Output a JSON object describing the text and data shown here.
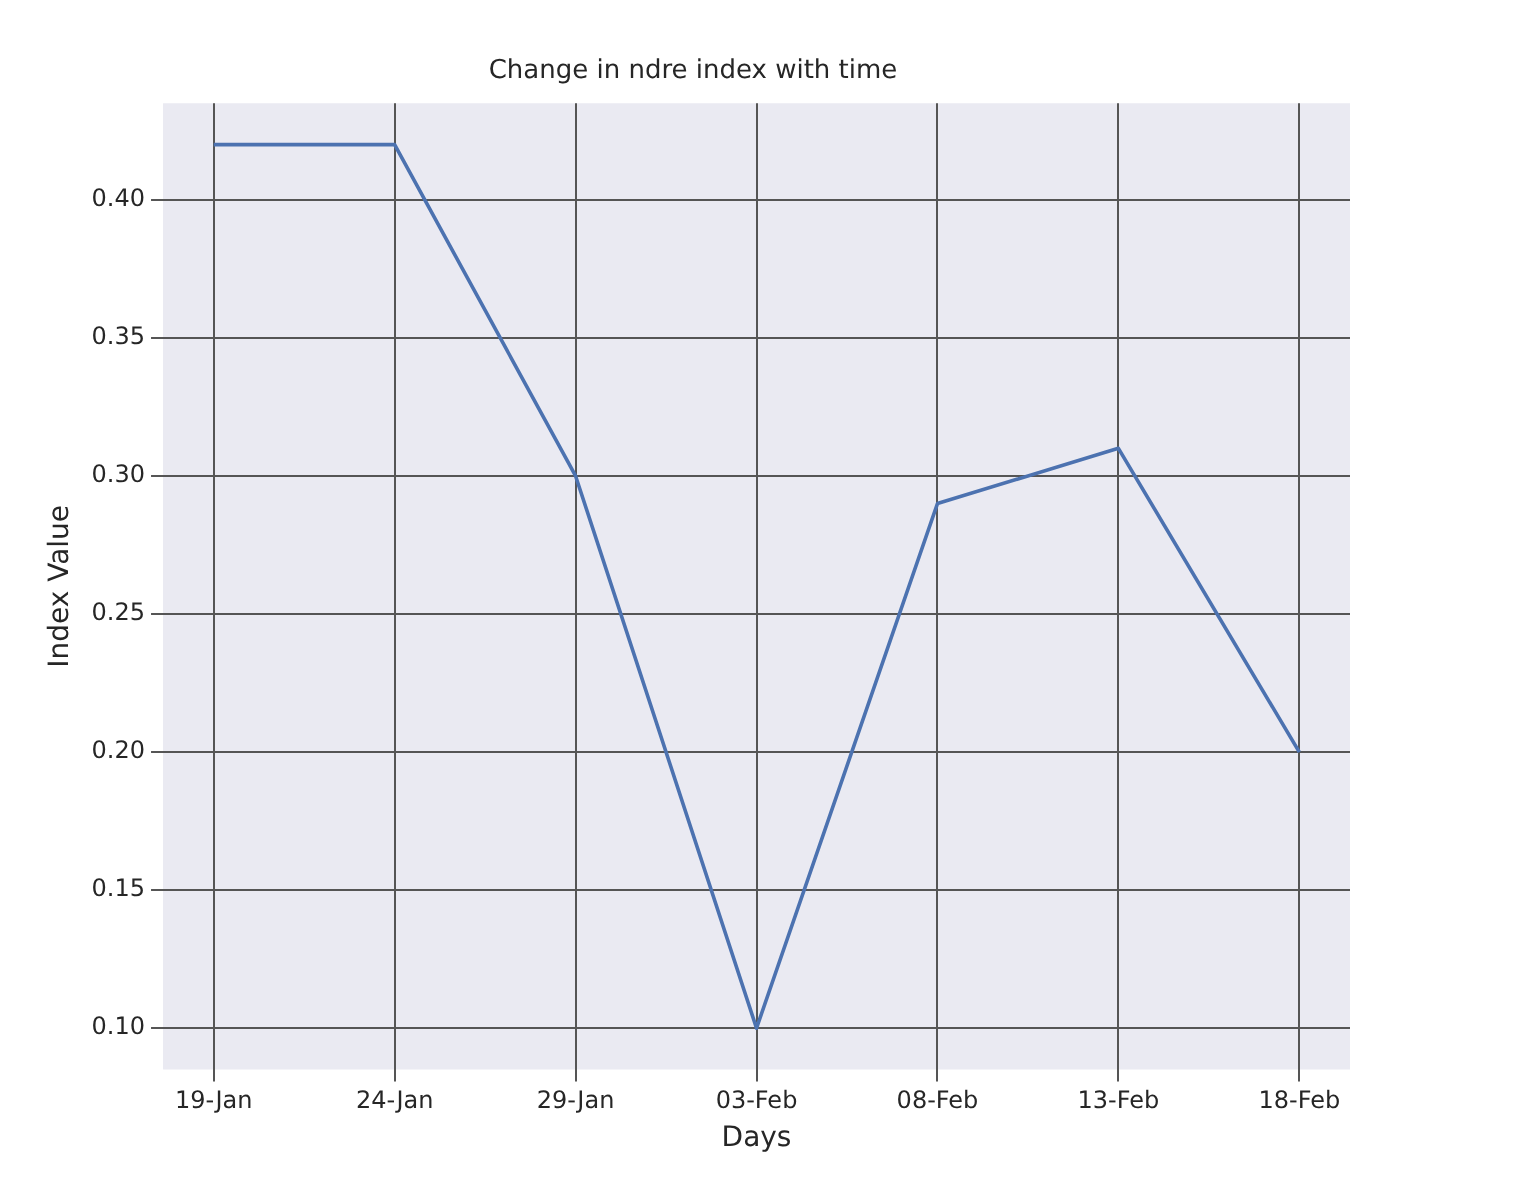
{
  "chart_data": {
    "type": "line",
    "title": "Change in ndre index with time",
    "xlabel": "Days",
    "ylabel": "Index Value",
    "categories": [
      "19-Jan",
      "24-Jan",
      "29-Jan",
      "03-Feb",
      "08-Feb",
      "13-Feb",
      "18-Feb"
    ],
    "series": [
      {
        "color": "#4c72b0",
        "values": [
          0.42,
          0.42,
          0.3,
          0.1,
          0.29,
          0.31,
          0.2
        ]
      }
    ],
    "ylim": [
      0.085,
      0.435
    ],
    "yticks": [
      {
        "value": 0.1,
        "label": "0.10"
      },
      {
        "value": 0.15,
        "label": "0.15"
      },
      {
        "value": 0.2,
        "label": "0.20"
      },
      {
        "value": 0.25,
        "label": "0.25"
      },
      {
        "value": 0.3,
        "label": "0.30"
      },
      {
        "value": 0.35,
        "label": "0.35"
      },
      {
        "value": 0.4,
        "label": "0.40"
      }
    ],
    "grid": true,
    "legend": false,
    "marker": "none",
    "line_style": "solid"
  }
}
